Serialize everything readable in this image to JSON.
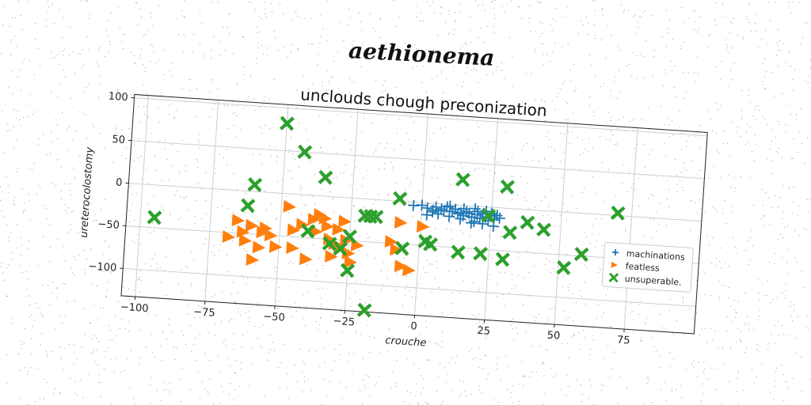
{
  "suptitle": "aethionema",
  "chart_data": {
    "type": "scatter",
    "title": "unclouds chough preconization",
    "xlabel": "crouche",
    "ylabel": "ureterocolostomy",
    "xlim": [
      -105,
      100
    ],
    "ylim": [
      -132,
      104
    ],
    "xticks": [
      -100,
      -75,
      -50,
      -25,
      0,
      25,
      50,
      75
    ],
    "yticks": [
      -100,
      -50,
      0,
      50,
      100
    ],
    "xtick_labels": [
      "−100",
      "−75",
      "−50",
      "−25",
      "0",
      "25",
      "50",
      "75"
    ],
    "ytick_labels": [
      "−100",
      "−50",
      "0",
      "50",
      "100"
    ],
    "grid": true,
    "legend_position": "right",
    "colors": {
      "machinations": "#1f77b4",
      "featless": "#ff7f0e",
      "unsuperable.": "#2ca02c"
    },
    "series": [
      {
        "name": "machinations",
        "marker": "plus",
        "color": "#1f77b4",
        "points": [
          [
            -3,
            -4
          ],
          [
            0,
            -3
          ],
          [
            2,
            -6
          ],
          [
            4,
            -10
          ],
          [
            5,
            -4
          ],
          [
            6,
            -12
          ],
          [
            7,
            -6
          ],
          [
            8,
            -8
          ],
          [
            9,
            -3
          ],
          [
            10,
            -14
          ],
          [
            11,
            -8
          ],
          [
            12,
            -5
          ],
          [
            13,
            -10
          ],
          [
            14,
            -16
          ],
          [
            15,
            -12
          ],
          [
            15,
            -4
          ],
          [
            16,
            -7
          ],
          [
            17,
            -9
          ],
          [
            18,
            -13
          ],
          [
            19,
            -3
          ],
          [
            19,
            -18
          ],
          [
            20,
            -6
          ],
          [
            20,
            -10
          ],
          [
            21,
            -14
          ],
          [
            22,
            -8
          ],
          [
            22,
            -20
          ],
          [
            23,
            -5
          ],
          [
            23,
            -12
          ],
          [
            24,
            -16
          ],
          [
            25,
            -10
          ],
          [
            25,
            -7
          ],
          [
            26,
            -14
          ],
          [
            26,
            -22
          ],
          [
            27,
            -9
          ],
          [
            28,
            -12
          ],
          [
            2,
            -14
          ],
          [
            4,
            -8
          ],
          [
            10,
            -2
          ],
          [
            14,
            -9
          ],
          [
            18,
            -20
          ]
        ]
      },
      {
        "name": "featless",
        "marker": "triangle-right",
        "color": "#ff7f0e",
        "points": [
          [
            -68,
            -55
          ],
          [
            -65,
            -35
          ],
          [
            -63,
            -48
          ],
          [
            -62,
            -58
          ],
          [
            -60,
            -40
          ],
          [
            -59,
            -80
          ],
          [
            -57,
            -65
          ],
          [
            -56,
            -47
          ],
          [
            -55,
            -42
          ],
          [
            -53,
            -50
          ],
          [
            -51,
            -63
          ],
          [
            -47,
            -15
          ],
          [
            -45,
            -42
          ],
          [
            -45,
            -63
          ],
          [
            -42,
            -35
          ],
          [
            -40,
            -75
          ],
          [
            -38,
            -28
          ],
          [
            -37,
            -42
          ],
          [
            -36,
            -22
          ],
          [
            -34,
            -26
          ],
          [
            -33,
            -35
          ],
          [
            -32,
            -50
          ],
          [
            -31,
            -70
          ],
          [
            -30,
            -55
          ],
          [
            -29,
            -38
          ],
          [
            -27,
            -28
          ],
          [
            -26,
            -50
          ],
          [
            -25,
            -65
          ],
          [
            -24,
            -75
          ],
          [
            -22,
            -55
          ],
          [
            -10,
            -48
          ],
          [
            -8,
            -57
          ],
          [
            -7,
            -25
          ],
          [
            -6,
            -76
          ],
          [
            -3,
            -80
          ],
          [
            1,
            -28
          ],
          [
            -28,
            -60
          ]
        ]
      },
      {
        "name": "unsuperable.",
        "marker": "x",
        "color": "#2ca02c",
        "points": [
          [
            -95,
            -38
          ],
          [
            -62,
            -17
          ],
          [
            -60,
            8
          ],
          [
            -50,
            82
          ],
          [
            -43,
            50
          ],
          [
            -40,
            -42
          ],
          [
            -35,
            22
          ],
          [
            -32,
            -55
          ],
          [
            -28,
            -60
          ],
          [
            -25,
            -45
          ],
          [
            -25,
            -85
          ],
          [
            -20,
            -20
          ],
          [
            -18,
            -20
          ],
          [
            -16,
            -20
          ],
          [
            -18,
            -130
          ],
          [
            -8,
            3
          ],
          [
            -6,
            -55
          ],
          [
            2,
            -45
          ],
          [
            4,
            -48
          ],
          [
            14,
            -55
          ],
          [
            14,
            30
          ],
          [
            22,
            -55
          ],
          [
            24,
            -10
          ],
          [
            30,
            -60
          ],
          [
            30,
            25
          ],
          [
            32,
            -28
          ],
          [
            38,
            -15
          ],
          [
            44,
            -22
          ],
          [
            52,
            -65
          ],
          [
            58,
            -48
          ],
          [
            70,
            3
          ]
        ]
      }
    ]
  }
}
